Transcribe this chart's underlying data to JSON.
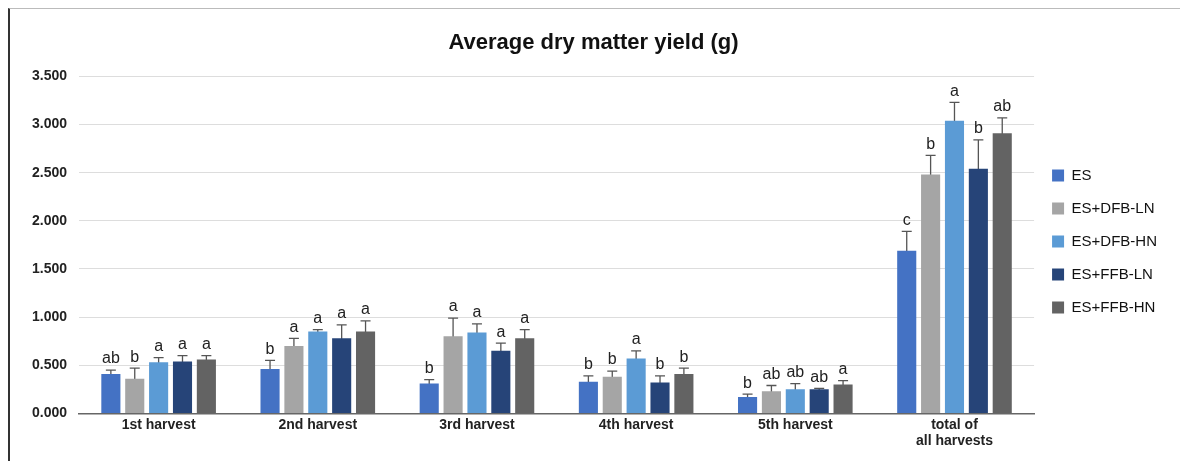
{
  "chart_data": {
    "type": "bar",
    "title": "Average dry matter yield (g)",
    "categories": [
      "1st harvest",
      "2nd harvest",
      "3rd harvest",
      "4th harvest",
      "5th harvest",
      "total of all harvests"
    ],
    "series": [
      {
        "name": "ES",
        "color": "#4472c4",
        "values": [
          0.41,
          0.46,
          0.31,
          0.33,
          0.17,
          1.69
        ],
        "errors": [
          0.04,
          0.09,
          0.04,
          0.06,
          0.03,
          0.2
        ],
        "value_labels": [
          "ab",
          "b",
          "b",
          "b",
          "b",
          "c"
        ]
      },
      {
        "name": "ES+DFB-LN",
        "color": "#a5a5a5",
        "values": [
          0.36,
          0.7,
          0.8,
          0.38,
          0.23,
          2.48
        ],
        "errors": [
          0.11,
          0.08,
          0.19,
          0.06,
          0.06,
          0.2
        ],
        "value_labels": [
          "b",
          "a",
          "a",
          "b",
          "ab",
          "b"
        ]
      },
      {
        "name": "ES+DFB-HN",
        "color": "#5b9bd5",
        "values": [
          0.53,
          0.85,
          0.84,
          0.57,
          0.25,
          3.04
        ],
        "errors": [
          0.05,
          0.02,
          0.09,
          0.08,
          0.06,
          0.19
        ],
        "value_labels": [
          "a",
          "a",
          "a",
          "a",
          "ab",
          "a"
        ]
      },
      {
        "name": "ES+FFB-LN",
        "color": "#264478",
        "values": [
          0.54,
          0.78,
          0.65,
          0.32,
          0.25,
          2.54
        ],
        "errors": [
          0.06,
          0.14,
          0.08,
          0.07,
          0.01,
          0.3
        ],
        "value_labels": [
          "a",
          "a",
          "a",
          "b",
          "ab",
          "b"
        ]
      },
      {
        "name": "ES+FFB-HN",
        "color": "#636363",
        "values": [
          0.56,
          0.85,
          0.78,
          0.41,
          0.3,
          2.91
        ],
        "errors": [
          0.04,
          0.11,
          0.09,
          0.06,
          0.04,
          0.16
        ],
        "value_labels": [
          "a",
          "a",
          "a",
          "b",
          "a",
          "ab"
        ]
      }
    ],
    "ylim": [
      0,
      3.5
    ],
    "yticks": [
      {
        "value": 0,
        "label": "0.000"
      },
      {
        "value": 0.5,
        "label": "0.500"
      },
      {
        "value": 1,
        "label": "1.000"
      },
      {
        "value": 1.5,
        "label": "1.500"
      },
      {
        "value": 2,
        "label": "2.000"
      },
      {
        "value": 2.5,
        "label": "2.500"
      },
      {
        "value": 3,
        "label": "3.000"
      },
      {
        "value": 3.5,
        "label": "3.500"
      }
    ],
    "grid": "y",
    "legend": "right"
  }
}
